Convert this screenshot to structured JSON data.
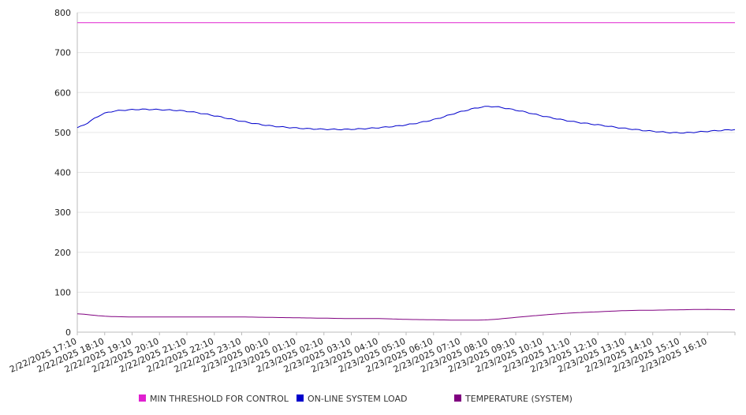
{
  "chart_data": {
    "type": "line",
    "ylim": [
      0,
      800
    ],
    "yticks": [
      0,
      100,
      200,
      300,
      400,
      500,
      600,
      700,
      800
    ],
    "grid": true,
    "legend_position": "bottom",
    "x_tick_labels": [
      "2/22/2025 17:10",
      "2/22/2025 18:10",
      "2/22/2025 19:10",
      "2/22/2025 20:10",
      "2/22/2025 21:10",
      "2/22/2025 22:10",
      "2/22/2025 23:10",
      "2/23/2025 00:10",
      "2/23/2025 01:10",
      "2/23/2025 02:10",
      "2/23/2025 03:10",
      "2/23/2025 04:10",
      "2/23/2025 05:10",
      "2/23/2025 06:10",
      "2/23/2025 07:10",
      "2/23/2025 08:10",
      "2/23/2025 09:10",
      "2/23/2025 10:10",
      "2/23/2025 11:10",
      "2/23/2025 12:10",
      "2/23/2025 13:10",
      "2/23/2025 14:10",
      "2/23/2025 15:10",
      "2/23/2025 16:10"
    ],
    "x": [
      "2/22/2025 17:10",
      "2/22/2025 18:10",
      "2/22/2025 19:10",
      "2/22/2025 20:10",
      "2/22/2025 21:10",
      "2/22/2025 22:10",
      "2/22/2025 23:10",
      "2/23/2025 00:10",
      "2/23/2025 01:10",
      "2/23/2025 02:10",
      "2/23/2025 03:10",
      "2/23/2025 04:10",
      "2/23/2025 05:10",
      "2/23/2025 06:10",
      "2/23/2025 07:10",
      "2/23/2025 08:10",
      "2/23/2025 09:10",
      "2/23/2025 10:10",
      "2/23/2025 11:10",
      "2/23/2025 12:10",
      "2/23/2025 13:10",
      "2/23/2025 14:10",
      "2/23/2025 15:10",
      "2/23/2025 16:10",
      "2/23/2025 17:10"
    ],
    "series": [
      {
        "name": "MIN THRESHOLD FOR CONTROL",
        "color": "#e020d0",
        "values": [
          775,
          775,
          775,
          775,
          775,
          775,
          775,
          775,
          775,
          775,
          775,
          775,
          775,
          775,
          775,
          775,
          775,
          775,
          775,
          775,
          775,
          775,
          775,
          775,
          775
        ]
      },
      {
        "name": "ON-LINE SYSTEM LOAD",
        "color": "#0000cc",
        "values": [
          512,
          548,
          557,
          557,
          553,
          542,
          528,
          517,
          511,
          508,
          508,
          512,
          519,
          532,
          552,
          565,
          556,
          541,
          528,
          519,
          510,
          503,
          499,
          503,
          507
        ]
      },
      {
        "name": "TEMPERATURE (SYSTEM)",
        "color": "#800080",
        "values": [
          46,
          40,
          38,
          38,
          38,
          38,
          38,
          37,
          36,
          35,
          34,
          34,
          32,
          31,
          30,
          31,
          37,
          43,
          48,
          51,
          54,
          55,
          56,
          57,
          56
        ]
      }
    ]
  }
}
